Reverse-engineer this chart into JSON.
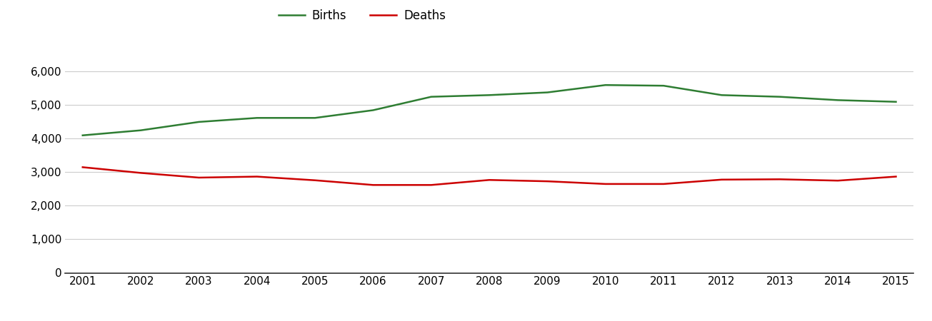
{
  "years": [
    2001,
    2002,
    2003,
    2004,
    2005,
    2006,
    2007,
    2008,
    2009,
    2010,
    2011,
    2012,
    2013,
    2014,
    2015
  ],
  "births": [
    4100,
    4250,
    4500,
    4620,
    4620,
    4850,
    5250,
    5300,
    5380,
    5600,
    5580,
    5300,
    5250,
    5150,
    5100
  ],
  "deaths": [
    3150,
    2980,
    2840,
    2870,
    2760,
    2620,
    2620,
    2770,
    2730,
    2650,
    2650,
    2780,
    2790,
    2750,
    2870
  ],
  "births_color": "#2e7d32",
  "deaths_color": "#cc0000",
  "background_color": "#ffffff",
  "grid_color": "#cccccc",
  "births_label": "Births",
  "deaths_label": "Deaths",
  "ylim": [
    0,
    6700
  ],
  "yticks": [
    0,
    1000,
    2000,
    3000,
    4000,
    5000,
    6000
  ],
  "xlim": [
    2001,
    2015
  ],
  "line_width": 1.8,
  "tick_fontsize": 11,
  "legend_fontsize": 12
}
